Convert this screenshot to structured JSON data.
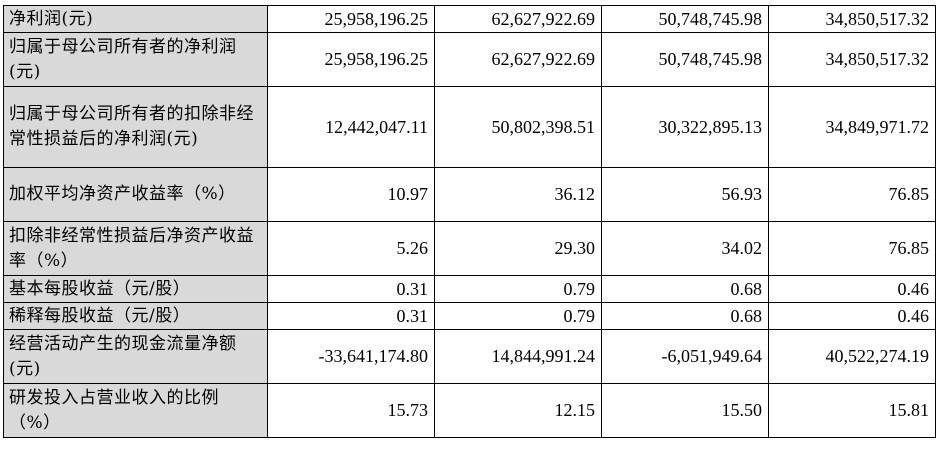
{
  "table": {
    "rows": [
      {
        "label": "净利润(元)",
        "values": [
          "25,958,196.25",
          "62,627,922.69",
          "50,748,745.98",
          "34,850,517.32"
        ]
      },
      {
        "label": "归属于母公司所有者的净利润(元)",
        "values": [
          "25,958,196.25",
          "62,627,922.69",
          "50,748,745.98",
          "34,850,517.32"
        ]
      },
      {
        "label": "归属于母公司所有者的扣除非经常性损益后的净利润(元)",
        "values": [
          "12,442,047.11",
          "50,802,398.51",
          "30,322,895.13",
          "34,849,971.72"
        ]
      },
      {
        "label": "加权平均净资产收益率（%）",
        "values": [
          "10.97",
          "36.12",
          "56.93",
          "76.85"
        ]
      },
      {
        "label": "扣除非经常性损益后净资产收益率（%）",
        "values": [
          "5.26",
          "29.30",
          "34.02",
          "76.85"
        ]
      },
      {
        "label": "基本每股收益（元/股）",
        "values": [
          "0.31",
          "0.79",
          "0.68",
          "0.46"
        ]
      },
      {
        "label": "稀释每股收益（元/股）",
        "values": [
          "0.31",
          "0.79",
          "0.68",
          "0.46"
        ]
      },
      {
        "label": "经营活动产生的现金流量净额(元)",
        "values": [
          "-33,641,174.80",
          "14,844,991.24",
          "-6,051,949.64",
          "40,522,274.19"
        ]
      },
      {
        "label": "研发投入占营业收入的比例（%）",
        "values": [
          "15.73",
          "12.15",
          "15.50",
          "15.81"
        ]
      }
    ]
  }
}
